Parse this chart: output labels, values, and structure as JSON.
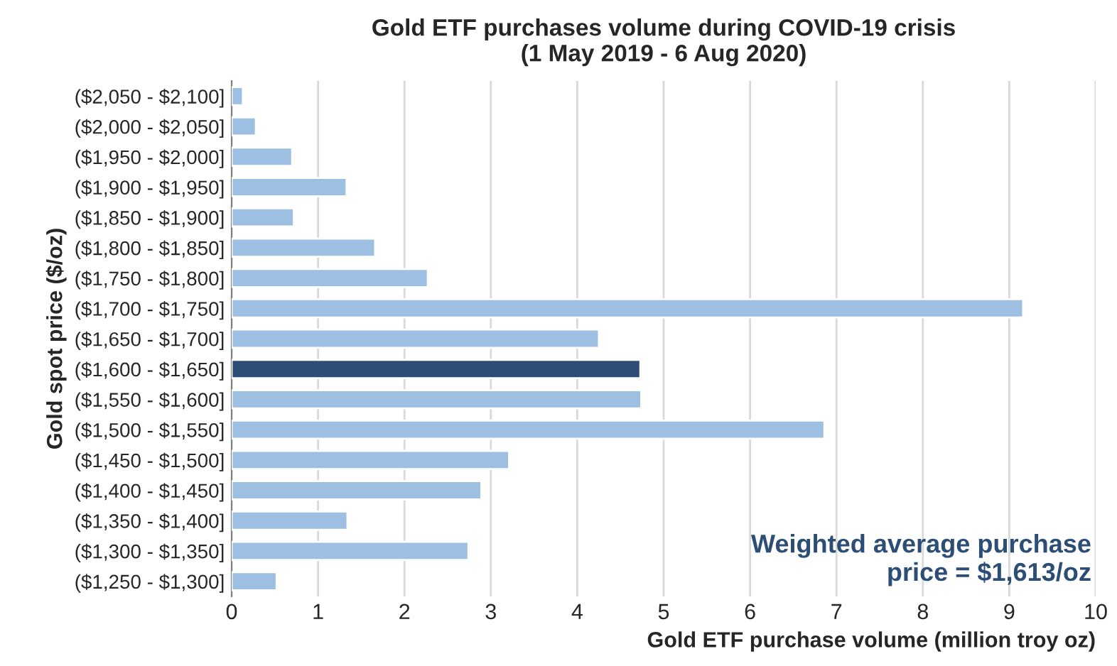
{
  "chart_data": {
    "type": "bar",
    "orientation": "horizontal",
    "title": "Gold ETF purchases volume during COVID-19 crisis\n(1 May 2019 - 6 Aug 2020)",
    "xlabel": "Gold ETF purchase volume (million troy oz)",
    "ylabel": "Gold spot price ($/oz)",
    "categories": [
      "($2,050 - $2,100]",
      "($2,000 - $2,050]",
      "($1,950 - $2,000]",
      "($1,900 - $1,950]",
      "($1,850 - $1,900]",
      "($1,800 - $1,850]",
      "($1,750 - $1,800]",
      "($1,700 - $1,750]",
      "($1,650 - $1,700]",
      "($1,600 - $1,650]",
      "($1,550 - $1,600]",
      "($1,500 - $1,550]",
      "($1,450 - $1,500]",
      "($1,400 - $1,450]",
      "($1,350 - $1,400]",
      "($1,300 - $1,350]",
      "($1,250 - $1,300]"
    ],
    "values": [
      0.13,
      0.28,
      0.7,
      1.33,
      0.72,
      1.66,
      2.27,
      9.16,
      4.25,
      4.73,
      4.74,
      6.86,
      3.21,
      2.89,
      1.34,
      2.74,
      0.52
    ],
    "colors": [
      "#9dbfe1",
      "#9dbfe1",
      "#9dbfe1",
      "#9dbfe1",
      "#9dbfe1",
      "#9dbfe1",
      "#9dbfe1",
      "#9dbfe1",
      "#9dbfe1",
      "#2c4e76",
      "#9dbfe1",
      "#9dbfe1",
      "#9dbfe1",
      "#9dbfe1",
      "#9dbfe1",
      "#9dbfe1",
      "#9dbfe1"
    ],
    "xlim": [
      0,
      10
    ],
    "xticks": [
      0,
      1,
      2,
      3,
      4,
      5,
      6,
      7,
      8,
      9,
      10
    ],
    "grid": "x",
    "annotations": [
      "Weighted average purchase\nprice = $1,613/oz"
    ]
  }
}
